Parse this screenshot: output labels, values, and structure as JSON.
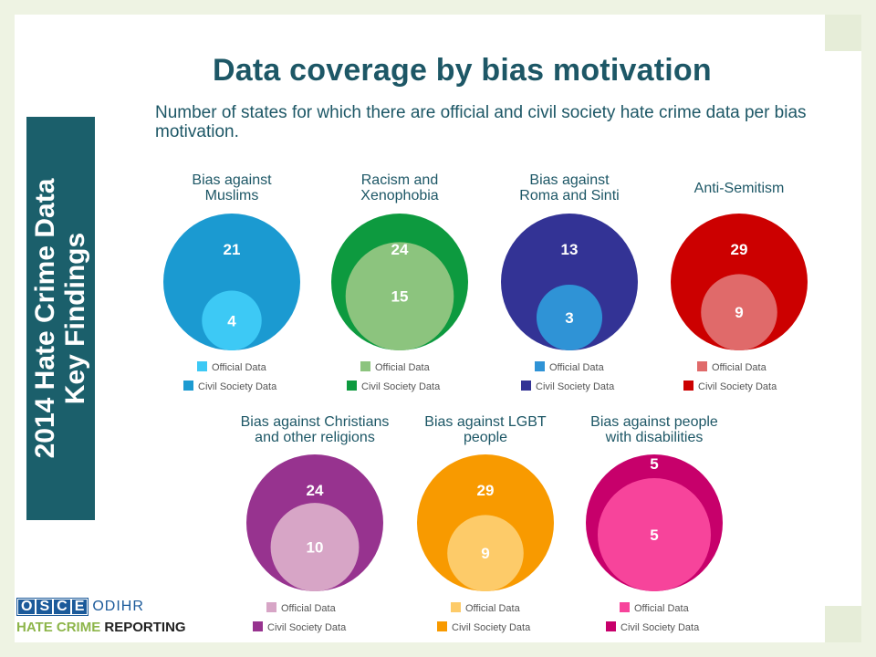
{
  "side_banner": {
    "line1": "2014 Hate Crime Data",
    "line2": "Key Findings"
  },
  "title": "Data coverage by bias motivation",
  "subtitle": "Number of states for which there are official and civil society hate crime data per bias motivation.",
  "logo": {
    "letters": [
      "O",
      "S",
      "C",
      "E"
    ],
    "odihr": "ODIHR",
    "hate_crime": "HATE CRIME",
    "reporting": "REPORTING"
  },
  "legend_labels": {
    "official": "Official Data",
    "civil": "Civil Society Data"
  },
  "chart_data": {
    "type": "bubble-pairs",
    "series_names": [
      "Official Data",
      "Civil Society Data"
    ],
    "charts": [
      {
        "label_lines": [
          "Bias against",
          "Muslims"
        ],
        "civil": 21,
        "official": 4,
        "civil_color": "#1b9ad1",
        "official_color": "#3dc9f5"
      },
      {
        "label_lines": [
          "Racism and",
          "Xenophobia"
        ],
        "civil": 24,
        "official": 15,
        "civil_color": "#0d9a3f",
        "official_color": "#8cc47e"
      },
      {
        "label_lines": [
          "Bias against",
          "Roma and Sinti"
        ],
        "civil": 13,
        "official": 3,
        "civil_color": "#333395",
        "official_color": "#2f93d6"
      },
      {
        "label_lines": [
          "Anti-Semitism"
        ],
        "civil": 29,
        "official": 9,
        "civil_color": "#cc0000",
        "official_color": "#e06a6a"
      },
      {
        "label_lines": [
          "Bias against Christians",
          "and other religions"
        ],
        "civil": 24,
        "official": 10,
        "civil_color": "#97338f",
        "official_color": "#d7a5c6"
      },
      {
        "label_lines": [
          "Bias against LGBT",
          "people"
        ],
        "civil": 29,
        "official": 9,
        "civil_color": "#f89a00",
        "official_color": "#fdcb69"
      },
      {
        "label_lines": [
          "Bias against people",
          "with disabilities"
        ],
        "civil": 5,
        "official": 5,
        "civil_color": "#c7006b",
        "official_color": "#f7449b"
      }
    ]
  }
}
